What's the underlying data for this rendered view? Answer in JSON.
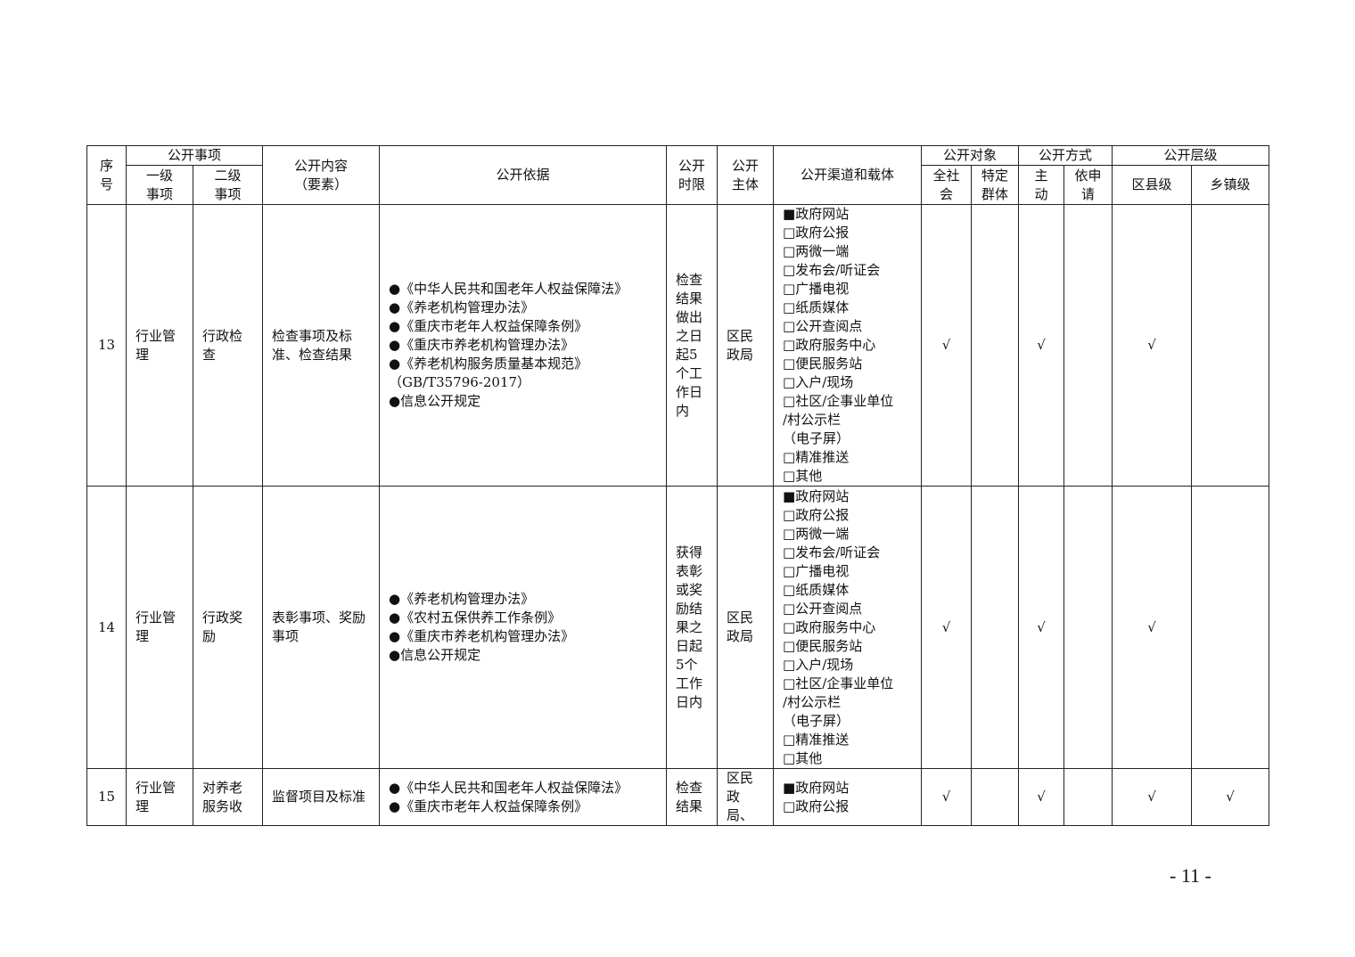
{
  "header": {
    "seq": "序号",
    "matter": "公开事项",
    "level1": "一级事项",
    "level2": "二级事项",
    "content": "公开内容（要素）",
    "basis": "公开依据",
    "time_limit": "公开时限",
    "subject": "公开主体",
    "channel": "公开渠道和载体",
    "target": "公开对象",
    "target_all": "全社会",
    "target_specific": "特定群体",
    "method": "公开方式",
    "method_active": "主动",
    "method_request": "依申请",
    "level": "公开层级",
    "level_county": "区县级",
    "level_town": "乡镇级"
  },
  "rows": [
    {
      "seq": "13",
      "level1": "行业管理",
      "level2": "行政检查",
      "content": "检查事项及标准、检查结果",
      "basis": [
        "●《中华人民共和国老年人权益保障法》",
        "●《养老机构管理办法》",
        "●《重庆市老年人权益保障条例》",
        "●《重庆市养老机构管理办法》",
        "●《养老机构服务质量基本规范》",
        "（GB/T35796-2017）",
        "●信息公开规定"
      ],
      "time_limit": "检查结果做出之日起5个工作日内",
      "subject": "区民政局",
      "channels": [
        "■政府网站",
        "□政府公报",
        "□两微一端",
        "□发布会/听证会",
        "□广播电视",
        "□纸质媒体",
        "□公开查阅点",
        "□政府服务中心",
        "□便民服务站",
        "□入户/现场",
        "□社区/企事业单位",
        "/村公示栏",
        "（电子屏）",
        "□精准推送",
        "□其他"
      ],
      "target_all": "√",
      "target_specific": "",
      "method_active": "√",
      "method_request": "",
      "level_county": "√",
      "level_town": ""
    },
    {
      "seq": "14",
      "level1": "行业管理",
      "level2": "行政奖励",
      "content": "表彰事项、奖励事项",
      "basis": [
        "●《养老机构管理办法》",
        "●《农村五保供养工作条例》",
        "●《重庆市养老机构管理办法》",
        "●信息公开规定"
      ],
      "time_limit": "获得表彰或奖励结果之日起5个工作日内",
      "subject": "区民政局",
      "channels": [
        "■政府网站",
        "□政府公报",
        "□两微一端",
        "□发布会/听证会",
        "□广播电视",
        "□纸质媒体",
        "□公开查阅点",
        "□政府服务中心",
        "□便民服务站",
        "□入户/现场",
        "□社区/企事业单位",
        "/村公示栏",
        "（电子屏）",
        "□精准推送",
        "□其他"
      ],
      "target_all": "√",
      "target_specific": "",
      "method_active": "√",
      "method_request": "",
      "level_county": "√",
      "level_town": ""
    },
    {
      "seq": "15",
      "level1": "行业管理",
      "level2": "对养老服务收",
      "content": "监督项目及标准",
      "basis": [
        "●《中华人民共和国老年人权益保障法》",
        "●《重庆市老年人权益保障条例》"
      ],
      "time_limit": "检查结果",
      "subject": "区民政局、",
      "channels": [
        "■政府网站",
        "□政府公报"
      ],
      "target_all": "√",
      "target_specific": "",
      "method_active": "√",
      "method_request": "",
      "level_county": "√",
      "level_town": "√"
    }
  ],
  "page_number": "- 11 -"
}
